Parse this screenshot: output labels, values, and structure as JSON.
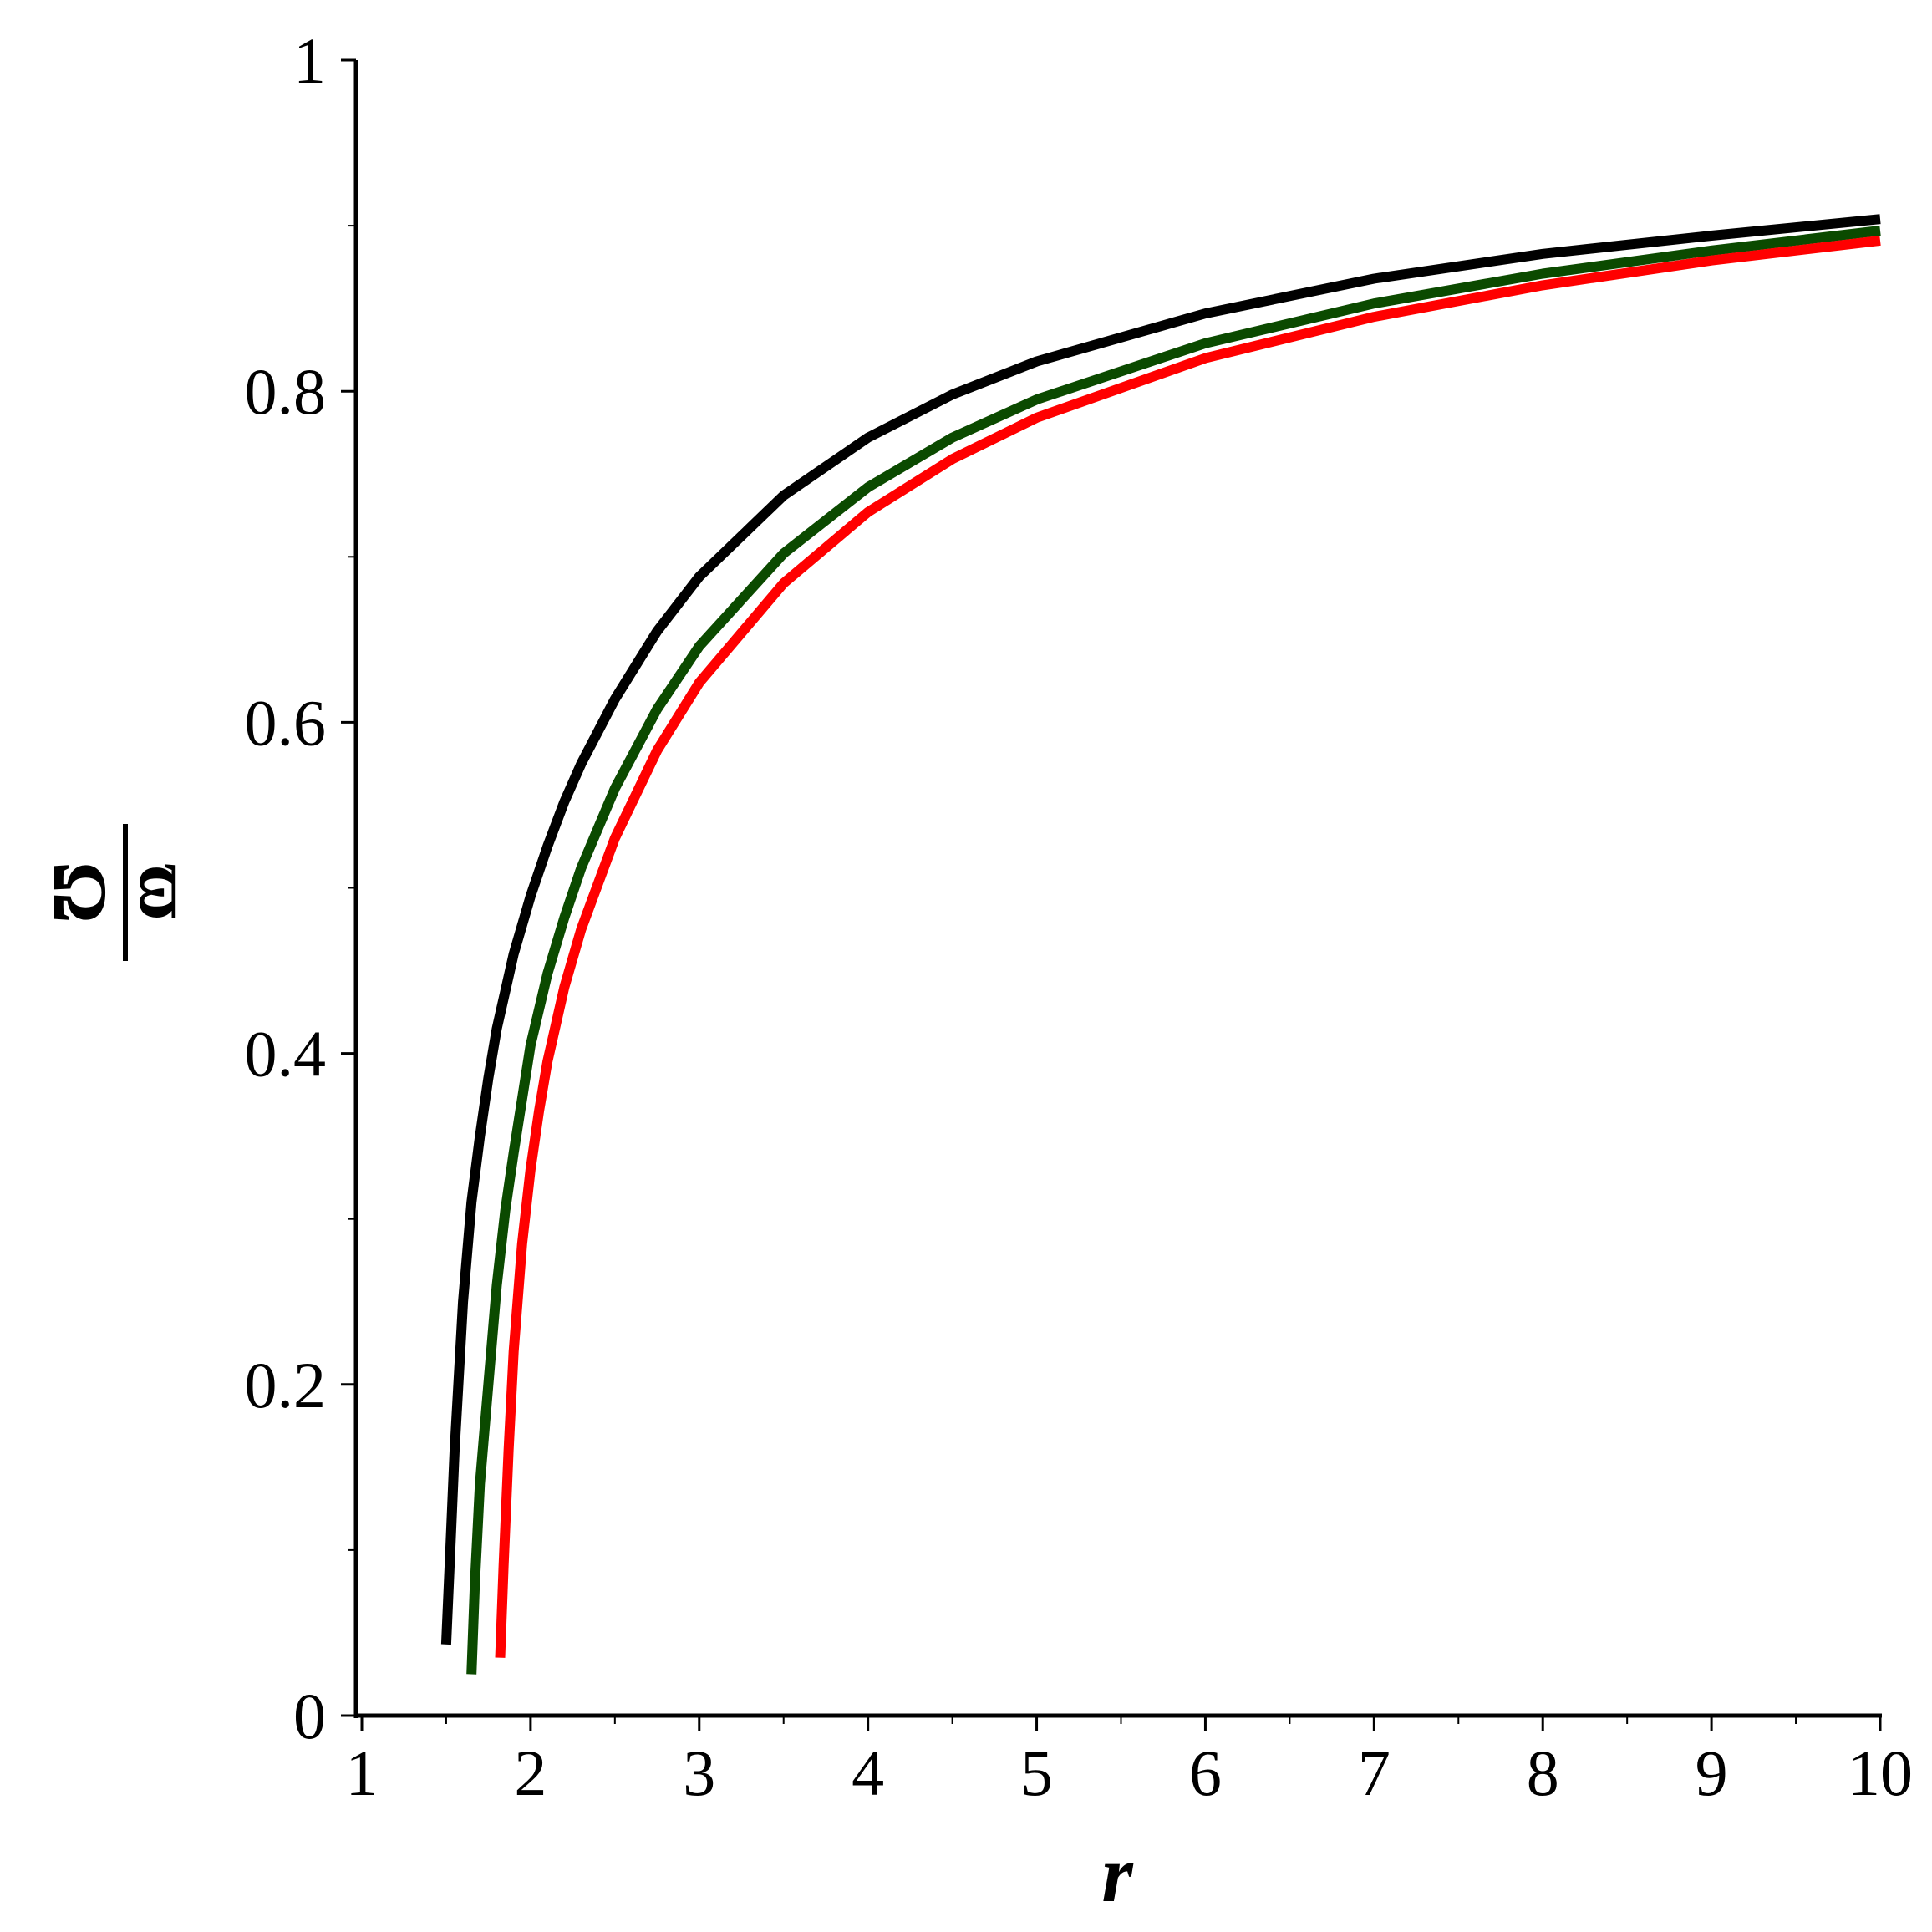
{
  "chart_data": {
    "type": "line",
    "title": "",
    "xlabel": "r",
    "ylabel": {
      "numerator": "ϖ",
      "denominator": "Ω"
    },
    "xlim": [
      1,
      10
    ],
    "ylim": [
      0,
      1
    ],
    "x_ticks": [
      1,
      2,
      3,
      4,
      5,
      6,
      7,
      8,
      9,
      10
    ],
    "x_tick_labels": [
      "1",
      "2",
      "3",
      "4",
      "5",
      "6",
      "7",
      "8",
      "9",
      "10"
    ],
    "y_ticks": [
      0,
      0.2,
      0.4,
      0.6,
      0.8,
      1
    ],
    "y_tick_labels": [
      "0",
      "0.2",
      "0.4",
      "0.6",
      "0.8",
      "1"
    ],
    "grid": false,
    "legend": "none",
    "series": [
      {
        "color": "#000000",
        "x": [
          1.5,
          1.52,
          1.55,
          1.6,
          1.65,
          1.7,
          1.75,
          1.8,
          1.9,
          2.0,
          2.1,
          2.2,
          2.3,
          2.5,
          2.75,
          3.0,
          3.5,
          4.0,
          4.5,
          5.0,
          6.0,
          7.0,
          8.0,
          9.0,
          10.0
        ],
        "y": [
          0.043,
          0.09,
          0.16,
          0.25,
          0.31,
          0.35,
          0.385,
          0.415,
          0.46,
          0.495,
          0.525,
          0.552,
          0.575,
          0.614,
          0.655,
          0.688,
          0.737,
          0.772,
          0.798,
          0.818,
          0.847,
          0.868,
          0.883,
          0.894,
          0.904
        ]
      },
      {
        "color": "#0b4a00",
        "x": [
          1.65,
          1.67,
          1.7,
          1.75,
          1.8,
          1.85,
          1.9,
          2.0,
          2.1,
          2.2,
          2.3,
          2.5,
          2.75,
          3.0,
          3.5,
          4.0,
          4.5,
          5.0,
          6.0,
          7.0,
          8.0,
          9.0,
          10.0
        ],
        "y": [
          0.025,
          0.08,
          0.14,
          0.2,
          0.26,
          0.305,
          0.34,
          0.405,
          0.448,
          0.482,
          0.512,
          0.56,
          0.608,
          0.646,
          0.702,
          0.742,
          0.772,
          0.795,
          0.829,
          0.853,
          0.871,
          0.885,
          0.897
        ]
      },
      {
        "color": "#ff0000",
        "x": [
          1.82,
          1.84,
          1.87,
          1.9,
          1.95,
          2.0,
          2.05,
          2.1,
          2.2,
          2.3,
          2.5,
          2.75,
          3.0,
          3.5,
          4.0,
          4.5,
          5.0,
          6.0,
          7.0,
          8.0,
          9.0,
          10.0
        ],
        "y": [
          0.035,
          0.09,
          0.16,
          0.22,
          0.285,
          0.33,
          0.365,
          0.395,
          0.44,
          0.475,
          0.53,
          0.583,
          0.624,
          0.684,
          0.727,
          0.759,
          0.784,
          0.82,
          0.845,
          0.864,
          0.879,
          0.891
        ]
      }
    ]
  }
}
